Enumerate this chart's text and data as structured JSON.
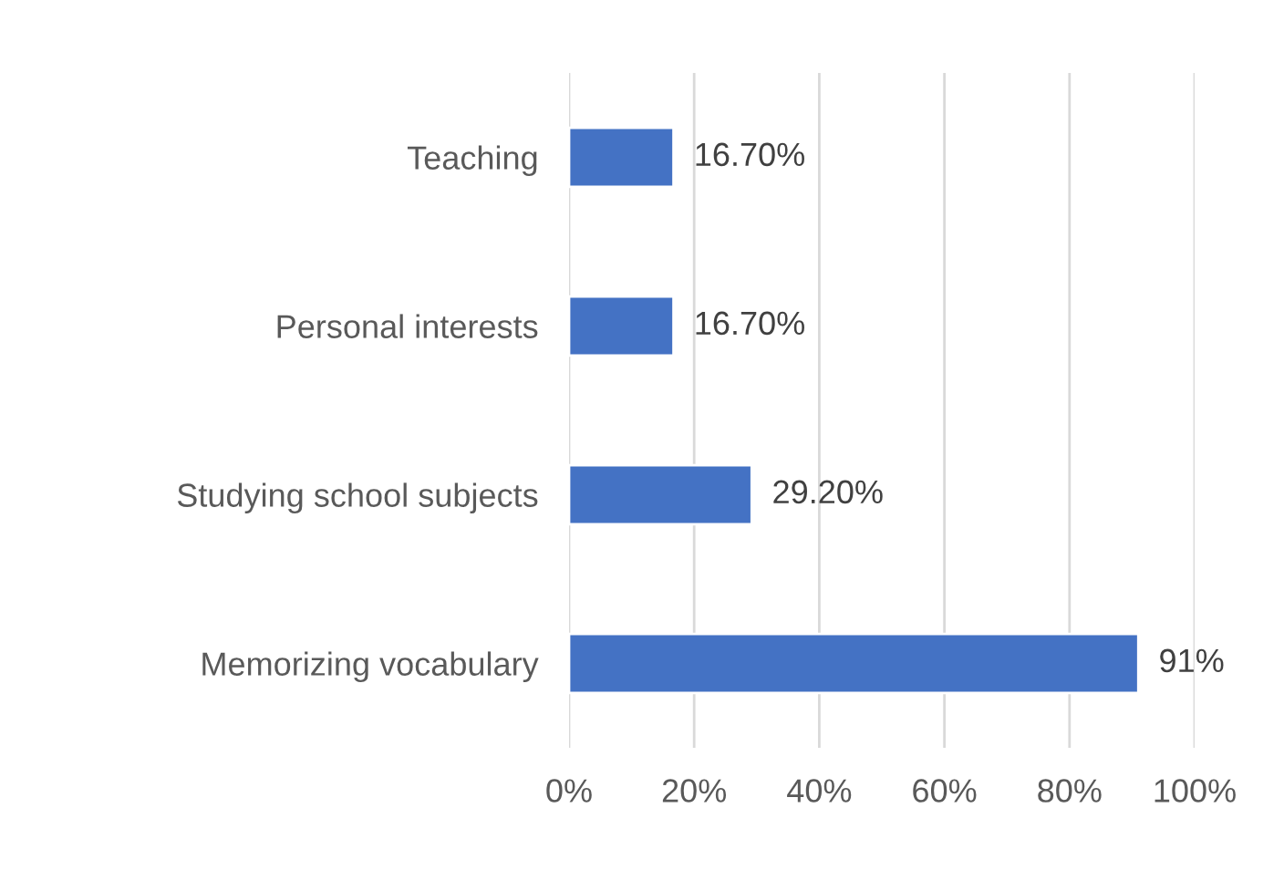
{
  "chart_data": {
    "type": "bar",
    "orientation": "horizontal",
    "categories": [
      "Teaching",
      "Personal interests",
      "Studying school subjects",
      "Memorizing vocabulary"
    ],
    "values": [
      16.7,
      16.7,
      29.2,
      91
    ],
    "value_labels": [
      "16.70%",
      "16.70%",
      "29.20%",
      "91%"
    ],
    "color": "#4472c4",
    "xlim": [
      0,
      100
    ],
    "xticks": [
      {
        "value": 0,
        "label": "0%"
      },
      {
        "value": 20,
        "label": "20%"
      },
      {
        "value": 40,
        "label": "40%"
      },
      {
        "value": 60,
        "label": "60%"
      },
      {
        "value": 80,
        "label": "80%"
      },
      {
        "value": 100,
        "label": "100%"
      }
    ],
    "grid": "x",
    "legend": false
  }
}
